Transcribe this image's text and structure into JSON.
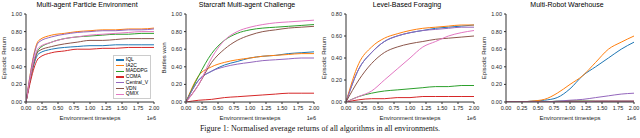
{
  "chart_data": [
    {
      "type": "line",
      "title": "Multi-agent Particle Environment",
      "x_label": "Environment timesteps",
      "y_label": "Episodic Return",
      "x_offset_text": "1e6",
      "legend": "lower right",
      "x": [
        0,
        200000,
        400000,
        600000,
        800000,
        1000000,
        1200000,
        1400000,
        1600000,
        1800000,
        2000000
      ],
      "xlim": [
        0,
        2000000
      ],
      "xticks": [
        {
          "value": 0,
          "label": "0.00"
        },
        {
          "value": 250000,
          "label": "0.25"
        },
        {
          "value": 500000,
          "label": "0.50"
        },
        {
          "value": 750000,
          "label": "0.75"
        },
        {
          "value": 1000000,
          "label": "1.00"
        },
        {
          "value": 1250000,
          "label": "1.25"
        },
        {
          "value": 1500000,
          "label": "1.50"
        },
        {
          "value": 1750000,
          "label": "1.75"
        },
        {
          "value": 2000000,
          "label": "2.00"
        }
      ],
      "ylim": [
        0,
        1
      ],
      "yticks": [
        {
          "value": 0,
          "label": "0.00"
        },
        {
          "value": 0.2,
          "label": "0.20"
        },
        {
          "value": 0.4,
          "label": "0.40"
        },
        {
          "value": 0.6,
          "label": "0.60"
        },
        {
          "value": 0.8,
          "label": "0.80"
        },
        {
          "value": 1,
          "label": "1.00"
        }
      ],
      "series": [
        {
          "name": "IQL",
          "color": "#1f77b4",
          "values": [
            0,
            0.55,
            0.6,
            0.62,
            0.63,
            0.64,
            0.64,
            0.65,
            0.65,
            0.65,
            0.65
          ]
        },
        {
          "name": "IA2C",
          "color": "#ff7f0e",
          "values": [
            0,
            0.7,
            0.76,
            0.78,
            0.8,
            0.81,
            0.82,
            0.82,
            0.83,
            0.83,
            0.84
          ]
        },
        {
          "name": "MADDPG",
          "color": "#2ca02c",
          "values": [
            0,
            0.6,
            0.68,
            0.72,
            0.74,
            0.75,
            0.76,
            0.77,
            0.77,
            0.78,
            0.78
          ]
        },
        {
          "name": "COMA",
          "color": "#d62728",
          "values": [
            0,
            0.5,
            0.56,
            0.58,
            0.6,
            0.6,
            0.61,
            0.61,
            0.62,
            0.62,
            0.62
          ]
        },
        {
          "name": "Central_V",
          "color": "#9467bd",
          "values": [
            0,
            0.68,
            0.74,
            0.77,
            0.79,
            0.8,
            0.81,
            0.81,
            0.82,
            0.82,
            0.83
          ]
        },
        {
          "name": "VDN",
          "color": "#8c564b",
          "values": [
            0,
            0.58,
            0.63,
            0.66,
            0.68,
            0.7,
            0.7,
            0.71,
            0.72,
            0.72,
            0.72
          ]
        },
        {
          "name": "QMIX",
          "color": "#e377c2",
          "values": [
            0,
            0.62,
            0.68,
            0.72,
            0.74,
            0.76,
            0.77,
            0.78,
            0.79,
            0.8,
            0.8
          ]
        }
      ]
    },
    {
      "type": "line",
      "title": "Starcraft Multi-agent Challenge",
      "x_label": "Environment timesteps",
      "y_label": "Battles won",
      "x_offset_text": "1e6",
      "x": [
        0,
        200000,
        400000,
        600000,
        800000,
        1000000,
        1200000,
        1400000,
        1600000,
        1800000,
        2000000
      ],
      "xlim": [
        0,
        2000000
      ],
      "xticks": [
        {
          "value": 0,
          "label": "0.00"
        },
        {
          "value": 250000,
          "label": "0.25"
        },
        {
          "value": 500000,
          "label": "0.50"
        },
        {
          "value": 750000,
          "label": "0.75"
        },
        {
          "value": 1000000,
          "label": "1.00"
        },
        {
          "value": 1250000,
          "label": "1.25"
        },
        {
          "value": 1500000,
          "label": "1.50"
        },
        {
          "value": 1750000,
          "label": "1.75"
        },
        {
          "value": 2000000,
          "label": "2.00"
        }
      ],
      "ylim": [
        0,
        1
      ],
      "yticks": [
        {
          "value": 0,
          "label": "0.00"
        },
        {
          "value": 0.2,
          "label": "0.20"
        },
        {
          "value": 0.4,
          "label": "0.40"
        },
        {
          "value": 0.6,
          "label": "0.60"
        },
        {
          "value": 0.8,
          "label": "0.80"
        },
        {
          "value": 1,
          "label": "1.00"
        }
      ],
      "series": [
        {
          "name": "IQL",
          "color": "#1f77b4",
          "values": [
            0,
            0.25,
            0.35,
            0.42,
            0.46,
            0.5,
            0.52,
            0.53,
            0.55,
            0.56,
            0.57
          ]
        },
        {
          "name": "IA2C",
          "color": "#ff7f0e",
          "values": [
            0,
            0.3,
            0.4,
            0.45,
            0.48,
            0.5,
            0.52,
            0.53,
            0.54,
            0.55,
            0.55
          ]
        },
        {
          "name": "MADDPG",
          "color": "#2ca02c",
          "values": [
            0,
            0.3,
            0.55,
            0.7,
            0.78,
            0.82,
            0.84,
            0.85,
            0.86,
            0.87,
            0.88
          ]
        },
        {
          "name": "COMA",
          "color": "#d62728",
          "values": [
            0,
            0.02,
            0.03,
            0.05,
            0.06,
            0.07,
            0.08,
            0.09,
            0.1,
            0.1,
            0.1
          ]
        },
        {
          "name": "Central_V",
          "color": "#9467bd",
          "values": [
            0,
            0.25,
            0.35,
            0.4,
            0.43,
            0.45,
            0.47,
            0.48,
            0.49,
            0.5,
            0.5
          ]
        },
        {
          "name": "VDN",
          "color": "#8c564b",
          "values": [
            0,
            0.2,
            0.45,
            0.6,
            0.7,
            0.76,
            0.8,
            0.82,
            0.84,
            0.85,
            0.86
          ]
        },
        {
          "name": "QMIX",
          "color": "#e377c2",
          "values": [
            0,
            0.2,
            0.5,
            0.7,
            0.8,
            0.85,
            0.88,
            0.9,
            0.91,
            0.92,
            0.93
          ]
        }
      ]
    },
    {
      "type": "line",
      "title": "Level-Based Foraging",
      "x_label": "Environment timesteps",
      "y_label": "Episodic Return",
      "x_offset_text": "1e6",
      "x": [
        0,
        200000,
        400000,
        600000,
        800000,
        1000000,
        1200000,
        1400000,
        1600000,
        1800000,
        2000000
      ],
      "xlim": [
        0,
        2000000
      ],
      "xticks": [
        {
          "value": 0,
          "label": "0.00"
        },
        {
          "value": 250000,
          "label": "0.25"
        },
        {
          "value": 500000,
          "label": "0.50"
        },
        {
          "value": 750000,
          "label": "0.75"
        },
        {
          "value": 1000000,
          "label": "1.00"
        },
        {
          "value": 1250000,
          "label": "1.25"
        },
        {
          "value": 1500000,
          "label": "1.50"
        },
        {
          "value": 1750000,
          "label": "1.75"
        },
        {
          "value": 2000000,
          "label": "2.00"
        }
      ],
      "ylim": [
        0,
        0.8
      ],
      "yticks": [
        {
          "value": 0,
          "label": "0.00"
        },
        {
          "value": 0.2,
          "label": "0.20"
        },
        {
          "value": 0.4,
          "label": "0.40"
        },
        {
          "value": 0.6,
          "label": "0.60"
        },
        {
          "value": 0.8,
          "label": "0.80"
        }
      ],
      "series": [
        {
          "name": "IQL",
          "color": "#1f77b4",
          "values": [
            0,
            0.3,
            0.45,
            0.55,
            0.6,
            0.63,
            0.65,
            0.67,
            0.68,
            0.69,
            0.7
          ]
        },
        {
          "name": "IA2C",
          "color": "#ff7f0e",
          "values": [
            0,
            0.35,
            0.5,
            0.58,
            0.62,
            0.65,
            0.67,
            0.68,
            0.69,
            0.7,
            0.7
          ]
        },
        {
          "name": "MADDPG",
          "color": "#2ca02c",
          "values": [
            0,
            0.05,
            0.08,
            0.1,
            0.11,
            0.12,
            0.13,
            0.14,
            0.14,
            0.15,
            0.15
          ]
        },
        {
          "name": "COMA",
          "color": "#d62728",
          "values": [
            0,
            0.02,
            0.03,
            0.03,
            0.04,
            0.04,
            0.05,
            0.05,
            0.05,
            0.05,
            0.05
          ]
        },
        {
          "name": "Central_V",
          "color": "#9467bd",
          "values": [
            0,
            0.3,
            0.45,
            0.55,
            0.6,
            0.63,
            0.65,
            0.66,
            0.67,
            0.68,
            0.68
          ]
        },
        {
          "name": "VDN",
          "color": "#8c564b",
          "values": [
            0,
            0.2,
            0.35,
            0.45,
            0.5,
            0.53,
            0.55,
            0.57,
            0.58,
            0.59,
            0.6
          ]
        },
        {
          "name": "QMIX",
          "color": "#e377c2",
          "values": [
            0,
            0.05,
            0.1,
            0.2,
            0.3,
            0.4,
            0.5,
            0.55,
            0.6,
            0.63,
            0.65
          ]
        }
      ]
    },
    {
      "type": "line",
      "title": "Multi-Robot Warehouse",
      "x_label": "Environment timesteps",
      "y_label": "Episodic Return",
      "x_offset_text": "1e6",
      "x": [
        0,
        200000,
        400000,
        600000,
        800000,
        1000000,
        1200000,
        1400000,
        1600000,
        1800000,
        2000000
      ],
      "xlim": [
        0,
        2000000
      ],
      "xticks": [
        {
          "value": 0,
          "label": "0.00"
        },
        {
          "value": 250000,
          "label": "0.25"
        },
        {
          "value": 500000,
          "label": "0.50"
        },
        {
          "value": 750000,
          "label": "0.75"
        },
        {
          "value": 1000000,
          "label": "1.00"
        },
        {
          "value": 1250000,
          "label": "1.25"
        },
        {
          "value": 1500000,
          "label": "1.50"
        },
        {
          "value": 1750000,
          "label": "1.75"
        },
        {
          "value": 2000000,
          "label": "2.00"
        }
      ],
      "ylim": [
        0,
        1
      ],
      "yticks": [
        {
          "value": 0,
          "label": "0.00"
        },
        {
          "value": 0.2,
          "label": "0.20"
        },
        {
          "value": 0.4,
          "label": "0.40"
        },
        {
          "value": 0.6,
          "label": "0.60"
        },
        {
          "value": 0.8,
          "label": "0.80"
        },
        {
          "value": 1,
          "label": "1.00"
        }
      ],
      "series": [
        {
          "name": "IQL",
          "color": "#1f77b4",
          "values": [
            0,
            0,
            0.01,
            0.02,
            0.05,
            0.15,
            0.3,
            0.4,
            0.5,
            0.6,
            0.68
          ]
        },
        {
          "name": "IA2C",
          "color": "#ff7f0e",
          "values": [
            0,
            0,
            0.01,
            0.03,
            0.1,
            0.2,
            0.3,
            0.45,
            0.6,
            0.68,
            0.75
          ]
        },
        {
          "name": "MADDPG",
          "color": "#2ca02c",
          "values": [
            0,
            0,
            0,
            0,
            0.01,
            0.01,
            0.01,
            0.01,
            0.01,
            0.01,
            0.01
          ]
        },
        {
          "name": "COMA",
          "color": "#d62728",
          "values": [
            0,
            0,
            0,
            0,
            0,
            0,
            0,
            0,
            0,
            0,
            0
          ]
        },
        {
          "name": "Central_V",
          "color": "#9467bd",
          "values": [
            0,
            0,
            0,
            0,
            0.01,
            0.02,
            0.03,
            0.05,
            0.07,
            0.09,
            0.1
          ]
        },
        {
          "name": "VDN",
          "color": "#8c564b",
          "values": [
            0,
            0,
            0,
            0,
            0,
            0.01,
            0.01,
            0.01,
            0.01,
            0.01,
            0.01
          ]
        },
        {
          "name": "QMIX",
          "color": "#e377c2",
          "values": [
            0,
            0,
            0,
            0,
            0,
            0,
            0,
            0.01,
            0.01,
            0.01,
            0.01
          ]
        }
      ]
    }
  ],
  "caption": "Figure 1: Normalised average returns of all algorithms in all environments."
}
